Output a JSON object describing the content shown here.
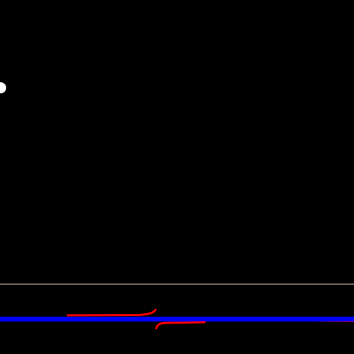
{
  "scene": {
    "background_color": "#000000",
    "agent": {
      "icon": "white-circle-agent",
      "color": "#ffffff"
    },
    "divider": {
      "color": "#f2c8c8"
    },
    "traces": {
      "primary_color": "#0000ff",
      "secondary_color": "#ff0000"
    }
  }
}
